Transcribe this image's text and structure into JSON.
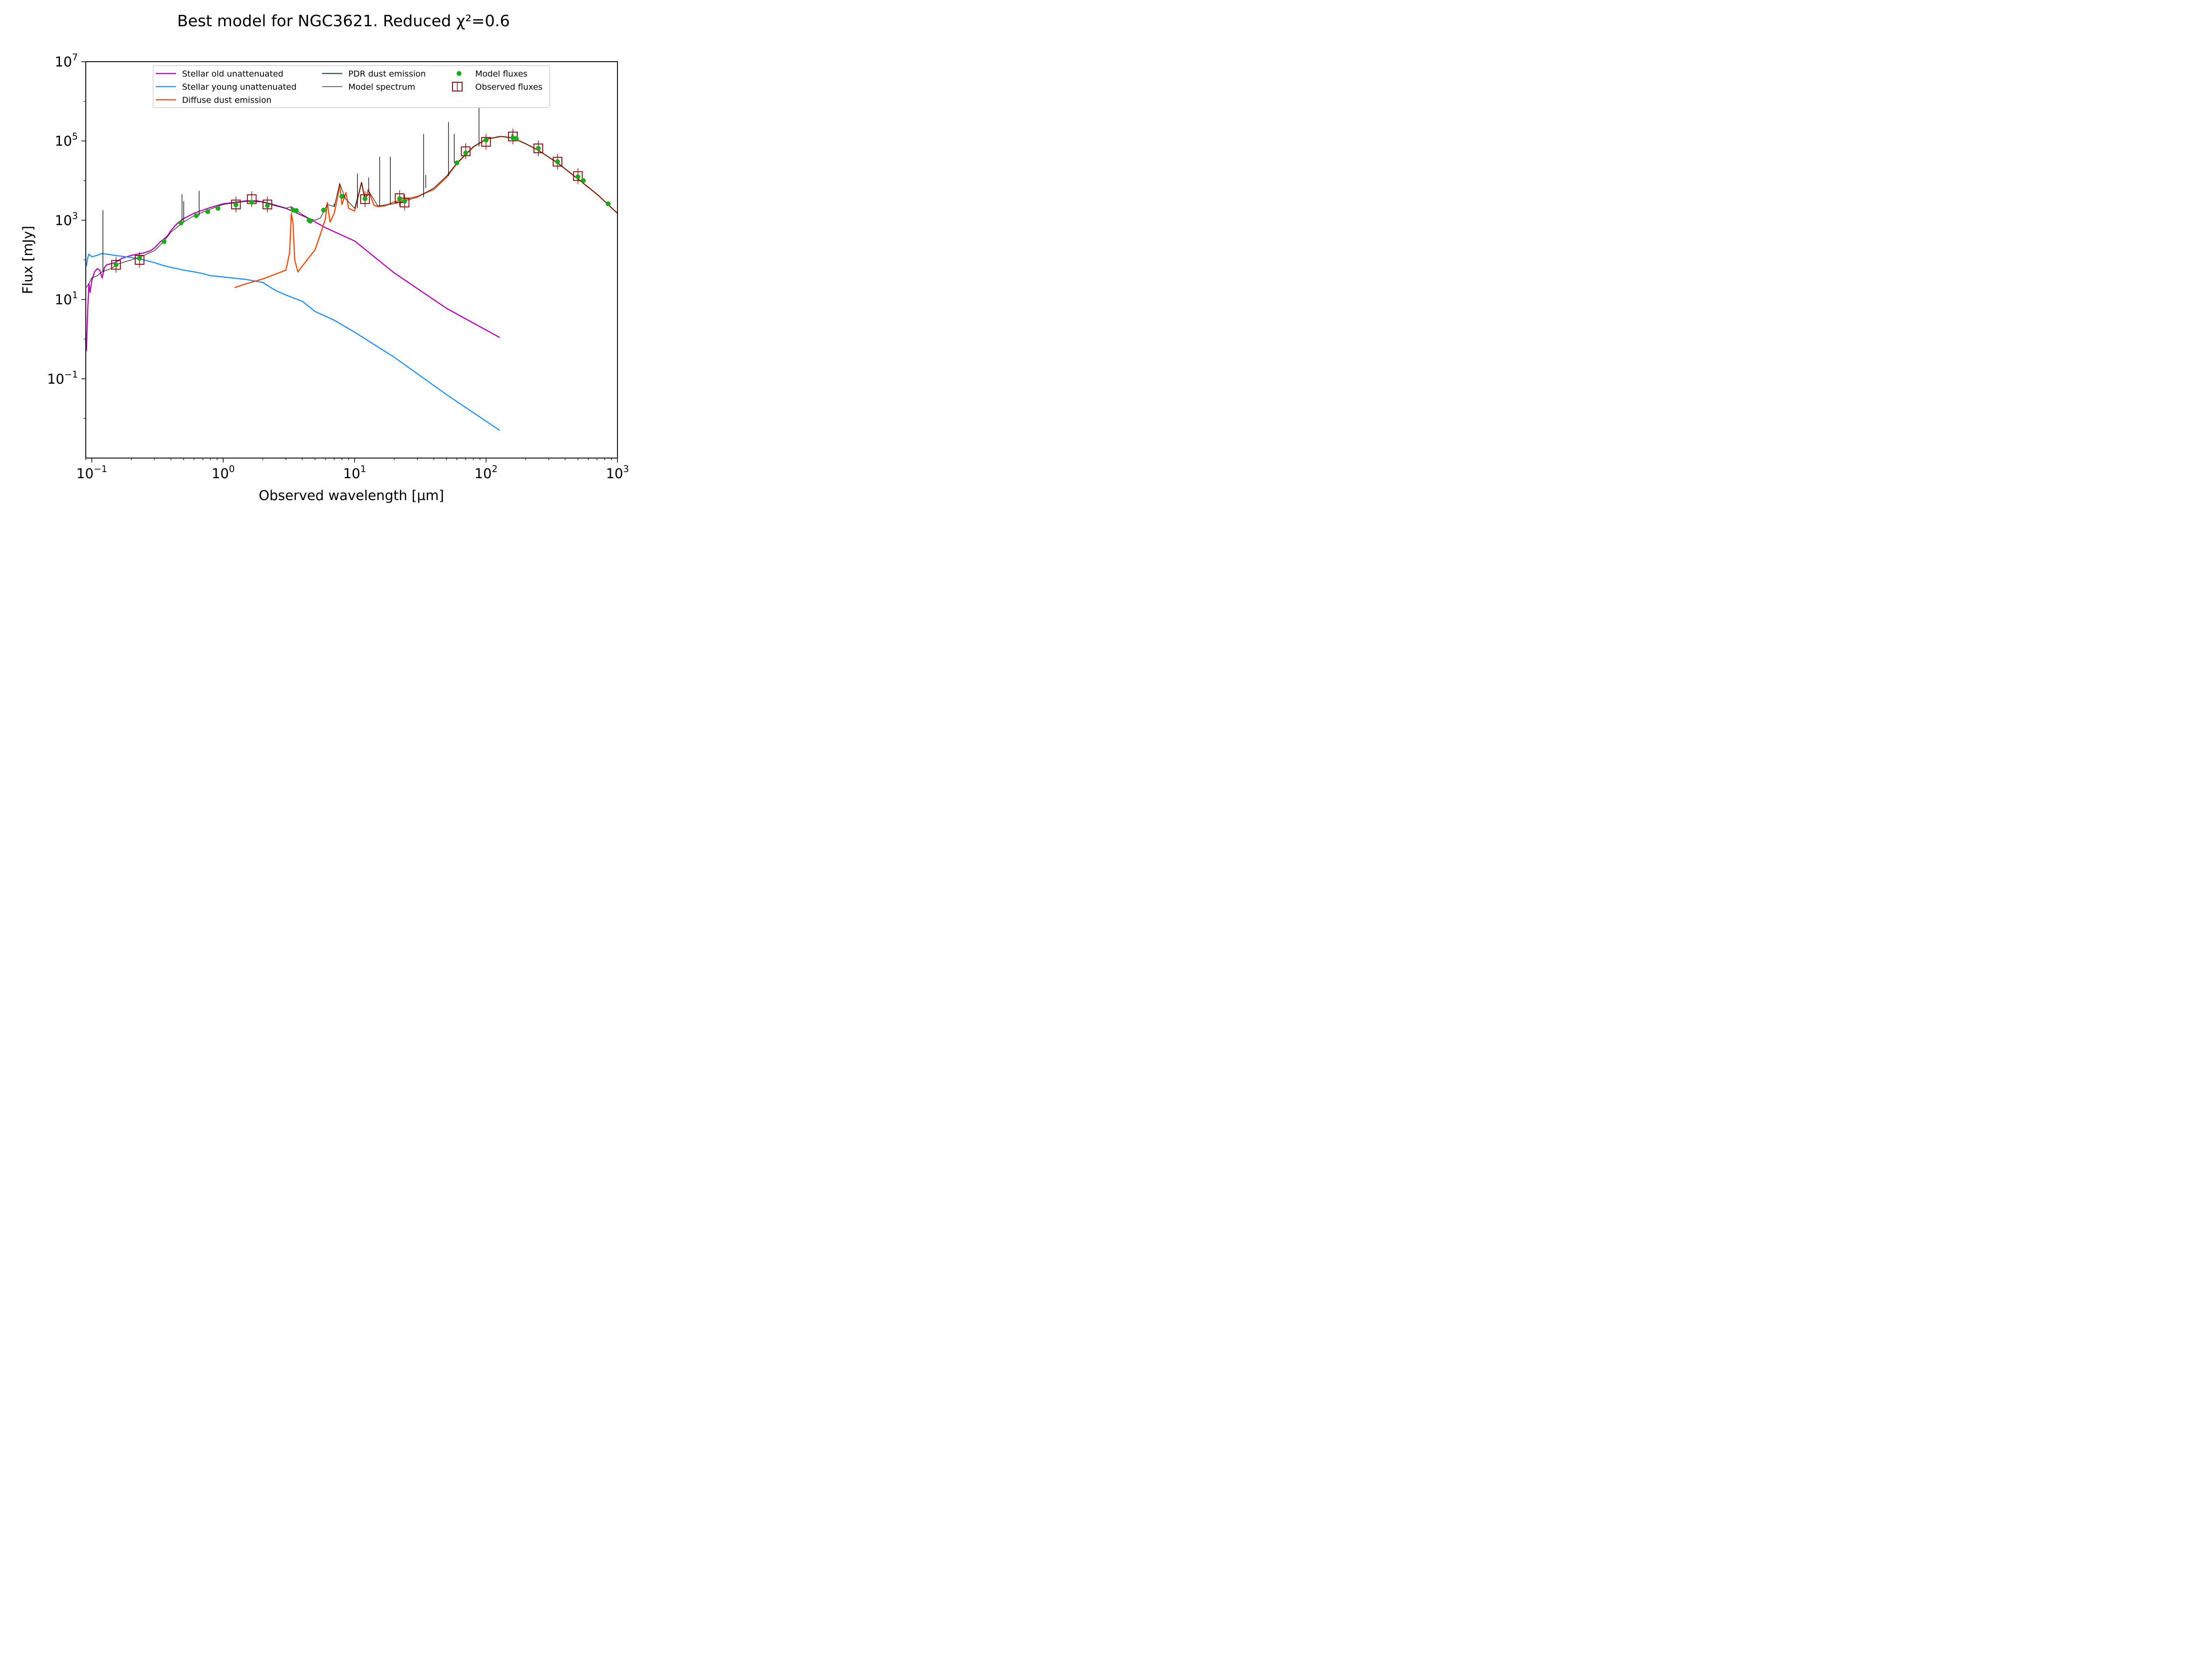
{
  "chart_data": {
    "type": "line",
    "title": "Best model for NGC3621. Reduced χ²=0.6",
    "xlabel": "Observed wavelength [μm]",
    "ylabel": "Flux [mJy]",
    "x_scale": "log",
    "y_scale": "log",
    "xlim": [
      0.09,
      1000
    ],
    "ylim": [
      0.001,
      10000000
    ],
    "x_ticks": [
      {
        "value": 0.1,
        "base": "10",
        "exp": "−1"
      },
      {
        "value": 1,
        "base": "10",
        "exp": "0"
      },
      {
        "value": 10,
        "base": "10",
        "exp": "1"
      },
      {
        "value": 100,
        "base": "10",
        "exp": "2"
      },
      {
        "value": 1000,
        "base": "10",
        "exp": "3"
      }
    ],
    "y_ticks": [
      {
        "value": 0.1,
        "base": "10",
        "exp": "−1"
      },
      {
        "value": 10,
        "base": "10",
        "exp": "1"
      },
      {
        "value": 1000,
        "base": "10",
        "exp": "3"
      },
      {
        "value": 100000,
        "base": "10",
        "exp": "5"
      },
      {
        "value": 10000000,
        "base": "10",
        "exp": "7"
      }
    ],
    "grid": false,
    "legend_placement": "top-center",
    "series": [
      {
        "name": "Stellar old unattenuated",
        "color": "#bf00bf",
        "points": [
          [
            0.091,
            0.5
          ],
          [
            0.093,
            5
          ],
          [
            0.095,
            25
          ],
          [
            0.097,
            15
          ],
          [
            0.1,
            30
          ],
          [
            0.105,
            50
          ],
          [
            0.11,
            60
          ],
          [
            0.115,
            55
          ],
          [
            0.12,
            35
          ],
          [
            0.125,
            65
          ],
          [
            0.13,
            75
          ],
          [
            0.14,
            80
          ],
          [
            0.15,
            85
          ],
          [
            0.17,
            110
          ],
          [
            0.2,
            130
          ],
          [
            0.25,
            150
          ],
          [
            0.28,
            170
          ],
          [
            0.3,
            200
          ],
          [
            0.33,
            280
          ],
          [
            0.36,
            350
          ],
          [
            0.38,
            420
          ],
          [
            0.4,
            550
          ],
          [
            0.45,
            850
          ],
          [
            0.5,
            1100
          ],
          [
            0.6,
            1500
          ],
          [
            0.7,
            1800
          ],
          [
            0.8,
            2100
          ],
          [
            1.0,
            2600
          ],
          [
            1.2,
            2800
          ],
          [
            1.5,
            3100
          ],
          [
            1.8,
            3100
          ],
          [
            2.2,
            2700
          ],
          [
            2.5,
            2400
          ],
          [
            3.0,
            2000
          ],
          [
            3.5,
            1600
          ],
          [
            4.5,
            1100
          ],
          [
            6,
            650
          ],
          [
            8,
            420
          ],
          [
            10,
            300
          ],
          [
            20,
            47
          ],
          [
            50,
            6
          ],
          [
            127,
            1.1
          ]
        ]
      },
      {
        "name": "Stellar young unattenuated",
        "color": "#1e90ff",
        "points": [
          [
            0.091,
            70
          ],
          [
            0.093,
            110
          ],
          [
            0.095,
            140
          ],
          [
            0.1,
            120
          ],
          [
            0.11,
            130
          ],
          [
            0.12,
            145
          ],
          [
            0.15,
            130
          ],
          [
            0.2,
            115
          ],
          [
            0.25,
            100
          ],
          [
            0.3,
            85
          ],
          [
            0.35,
            72
          ],
          [
            0.4,
            65
          ],
          [
            0.5,
            55
          ],
          [
            0.6,
            50
          ],
          [
            0.7,
            45
          ],
          [
            0.8,
            40
          ],
          [
            1.0,
            37
          ],
          [
            1.5,
            32
          ],
          [
            2.0,
            27
          ],
          [
            2.3,
            20
          ],
          [
            2.5,
            17
          ],
          [
            3.0,
            13
          ],
          [
            4.0,
            9
          ],
          [
            5.0,
            5
          ],
          [
            7.0,
            3
          ],
          [
            10,
            1.5
          ],
          [
            20,
            0.35
          ],
          [
            50,
            0.04
          ],
          [
            127,
            0.005
          ]
        ]
      },
      {
        "name": "Diffuse dust emission",
        "color": "#ff4500",
        "points": [
          [
            1.22,
            20
          ],
          [
            1.5,
            25
          ],
          [
            2.0,
            33
          ],
          [
            3.0,
            55
          ],
          [
            3.2,
            150
          ],
          [
            3.3,
            1500
          ],
          [
            3.35,
            1100
          ],
          [
            3.4,
            800
          ],
          [
            3.5,
            100
          ],
          [
            3.7,
            50
          ],
          [
            4.0,
            70
          ],
          [
            5.0,
            180
          ],
          [
            5.5,
            450
          ],
          [
            6.0,
            1100
          ],
          [
            6.2,
            2800
          ],
          [
            6.5,
            900
          ],
          [
            7.0,
            1500
          ],
          [
            7.5,
            4500
          ],
          [
            7.7,
            8000
          ],
          [
            8.0,
            2500
          ],
          [
            8.6,
            5000
          ],
          [
            9.0,
            2000
          ],
          [
            10,
            1700
          ],
          [
            11.3,
            9000
          ],
          [
            12,
            3000
          ],
          [
            12.7,
            6000
          ],
          [
            14,
            2400
          ],
          [
            15,
            2200
          ],
          [
            17,
            2300
          ],
          [
            20,
            2900
          ],
          [
            30,
            4000
          ],
          [
            40,
            6000
          ],
          [
            50,
            12000
          ],
          [
            60,
            27000
          ],
          [
            80,
            70000
          ],
          [
            100,
            110000
          ],
          [
            130,
            130000
          ],
          [
            160,
            118000
          ],
          [
            200,
            85000
          ],
          [
            250,
            58000
          ],
          [
            350,
            28000
          ],
          [
            500,
            11000
          ],
          [
            700,
            4500
          ],
          [
            1000,
            1500
          ]
        ]
      },
      {
        "name": "PDR dust emission",
        "color": "#2f4f4f",
        "points": []
      },
      {
        "name": "Model spectrum",
        "color": "#000000",
        "points": [
          [
            0.091,
            20
          ],
          [
            0.095,
            25
          ],
          [
            0.1,
            35
          ],
          [
            0.11,
            40
          ],
          [
            0.12,
            50
          ],
          [
            0.14,
            60
          ],
          [
            0.16,
            80
          ],
          [
            0.2,
            100
          ],
          [
            0.25,
            130
          ],
          [
            0.3,
            170
          ],
          [
            0.35,
            280
          ],
          [
            0.4,
            500
          ],
          [
            0.5,
            900
          ],
          [
            0.6,
            1300
          ],
          [
            0.8,
            1900
          ],
          [
            1.0,
            2500
          ],
          [
            1.5,
            3000
          ],
          [
            2.0,
            2900
          ],
          [
            2.5,
            2300
          ],
          [
            3.0,
            2000
          ],
          [
            3.3,
            2200
          ],
          [
            3.5,
            1900
          ],
          [
            4.0,
            1400
          ],
          [
            4.5,
            1100
          ],
          [
            5.0,
            1000
          ],
          [
            5.5,
            1150
          ],
          [
            6.2,
            2500
          ],
          [
            7.0,
            2200
          ],
          [
            7.7,
            8500
          ],
          [
            8.5,
            3500
          ],
          [
            10,
            2000
          ],
          [
            11.3,
            9000
          ],
          [
            12,
            3500
          ],
          [
            13,
            5000
          ],
          [
            15,
            2300
          ],
          [
            20,
            2600
          ],
          [
            30,
            3800
          ],
          [
            40,
            6500
          ],
          [
            50,
            13000
          ],
          [
            60,
            28000
          ],
          [
            80,
            72000
          ],
          [
            100,
            112000
          ],
          [
            130,
            132000
          ],
          [
            160,
            120000
          ],
          [
            200,
            86000
          ],
          [
            250,
            58000
          ],
          [
            350,
            28000
          ],
          [
            500,
            11000
          ],
          [
            700,
            4500
          ],
          [
            1000,
            1500
          ]
        ],
        "emission_lines": [
          [
            0.1216,
            1800
          ],
          [
            0.486,
            4500
          ],
          [
            0.6563,
            5500
          ],
          [
            0.5007,
            3000
          ],
          [
            3.29,
            1800
          ],
          [
            6.98,
            2600
          ],
          [
            10.5,
            15000
          ],
          [
            12.8,
            12000
          ],
          [
            15.5,
            40000
          ],
          [
            18.7,
            40000
          ],
          [
            33.5,
            150000
          ],
          [
            34.8,
            14000
          ],
          [
            51.8,
            300000
          ],
          [
            57.3,
            150000
          ],
          [
            88.4,
            700000
          ],
          [
            121.9,
            130000
          ],
          [
            157.7,
            150000
          ]
        ]
      }
    ],
    "model_fluxes": {
      "name": "Model fluxes",
      "color": "#1aad19",
      "points": [
        [
          0.153,
          75
        ],
        [
          0.231,
          110
        ],
        [
          0.355,
          290
        ],
        [
          0.477,
          850
        ],
        [
          0.623,
          1300
        ],
        [
          0.763,
          1650
        ],
        [
          0.913,
          2000
        ],
        [
          1.25,
          2450
        ],
        [
          1.65,
          2850
        ],
        [
          2.17,
          2350
        ],
        [
          3.4,
          1800
        ],
        [
          3.6,
          1750
        ],
        [
          4.5,
          1000
        ],
        [
          4.6,
          950
        ],
        [
          5.8,
          1800
        ],
        [
          8.0,
          4000
        ],
        [
          12,
          3500
        ],
        [
          22,
          3500
        ],
        [
          24,
          3000
        ],
        [
          60,
          28000
        ],
        [
          70,
          50000
        ],
        [
          100,
          105000
        ],
        [
          160,
          120000
        ],
        [
          170,
          115000
        ],
        [
          250,
          65000
        ],
        [
          350,
          30000
        ],
        [
          500,
          12500
        ],
        [
          550,
          10000
        ],
        [
          850,
          2600
        ]
      ]
    },
    "observed_fluxes": {
      "name": "Observed fluxes",
      "color": "#8b0000",
      "points": [
        [
          0.153,
          75
        ],
        [
          0.231,
          100
        ],
        [
          1.25,
          2500
        ],
        [
          1.65,
          3400
        ],
        [
          2.17,
          2500
        ],
        [
          12,
          3400
        ],
        [
          22,
          3600
        ],
        [
          24,
          2800
        ],
        [
          70,
          55000
        ],
        [
          100,
          95000
        ],
        [
          160,
          130000
        ],
        [
          250,
          65000
        ],
        [
          350,
          30000
        ],
        [
          500,
          13000
        ]
      ]
    }
  }
}
